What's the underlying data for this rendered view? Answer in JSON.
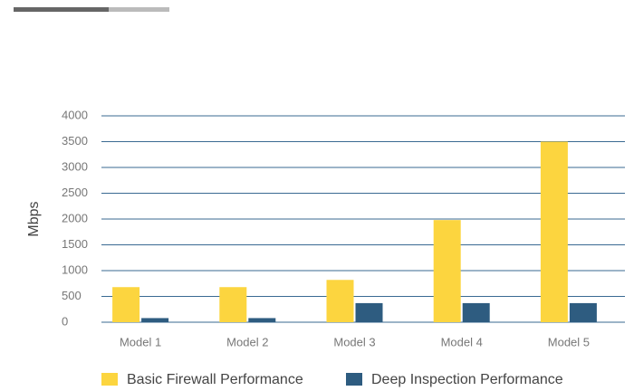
{
  "chart_data": {
    "type": "bar",
    "y_label": "Mbps",
    "categories": [
      "Model 1",
      "Model 2",
      "Model 3",
      "Model 4",
      "Model 5"
    ],
    "series": [
      {
        "name": "Basic Firewall Performance",
        "color": "#fcd53f",
        "values": [
          680,
          680,
          820,
          1980,
          3500
        ]
      },
      {
        "name": "Deep Inspection Performance",
        "color": "#2e5c80",
        "values": [
          80,
          80,
          370,
          370,
          370
        ]
      }
    ],
    "ylim": [
      0,
      4000
    ],
    "yticks": [
      0,
      500,
      1000,
      1500,
      2000,
      2500,
      3000,
      3500,
      4000
    ],
    "grid": true,
    "legend": "bottom"
  }
}
